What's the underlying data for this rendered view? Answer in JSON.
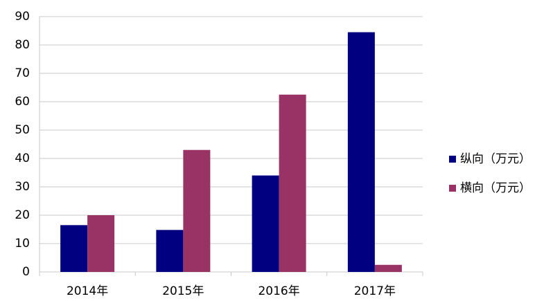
{
  "chart_data": {
    "type": "bar",
    "categories": [
      "2014年",
      "2015年",
      "2016年",
      "2017年"
    ],
    "series": [
      {
        "name": "纵向（万元）",
        "color": "#000080",
        "values": [
          16.5,
          14.8,
          34,
          84.5
        ]
      },
      {
        "name": "横向（万元）",
        "color": "#993366",
        "values": [
          20,
          43,
          62.5,
          2.5
        ]
      }
    ],
    "ylim": [
      0,
      90
    ],
    "yticks": [
      0,
      10,
      20,
      30,
      40,
      50,
      60,
      70,
      80,
      90
    ],
    "grid": true,
    "legend": "right"
  }
}
